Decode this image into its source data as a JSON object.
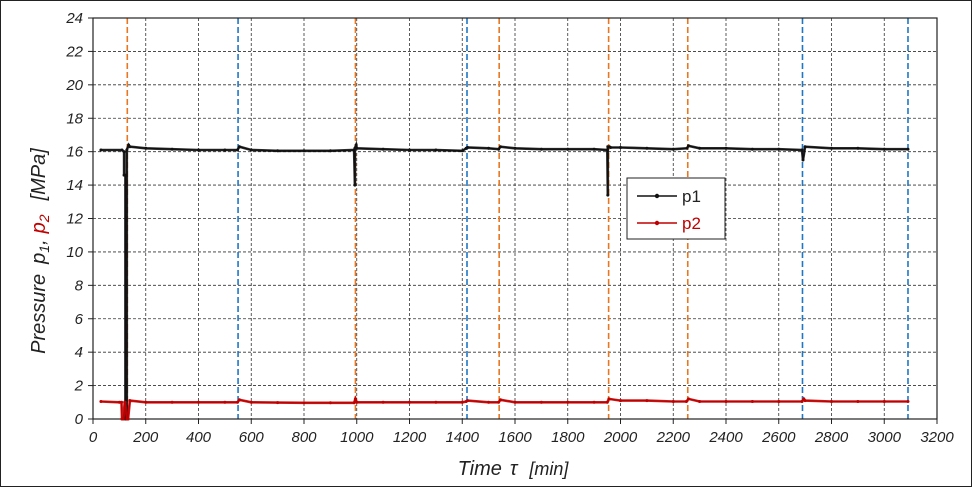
{
  "chart_data": {
    "type": "line",
    "ylabel_parts": {
      "pressure": "Pressure",
      "p1_base": "p",
      "p1_sub": "1",
      "comma": ",",
      "p2_base": "p",
      "p2_sub": "2",
      "unit": "[MPa]"
    },
    "xlabel_parts": {
      "time": "Time",
      "tau": "τ",
      "unit": "[min]"
    },
    "xlim": [
      0,
      3200
    ],
    "ylim": [
      0,
      24
    ],
    "x_ticks": [
      "0",
      "200",
      "400",
      "600",
      "800",
      "1000",
      "1200",
      "1400",
      "1600",
      "1800",
      "2000",
      "2200",
      "2400",
      "2600",
      "2800",
      "3000",
      "3200"
    ],
    "y_ticks": [
      "0",
      "2",
      "4",
      "6",
      "8",
      "10",
      "12",
      "14",
      "16",
      "18",
      "20",
      "22",
      "24"
    ],
    "grid": true,
    "legend_position": "center-right",
    "colors": {
      "p1": "#111111",
      "p2": "#c00000",
      "orange_marker": "#e87722",
      "blue_marker": "#1f77c4",
      "grid": "#333333"
    },
    "vertical_markers": [
      {
        "x": 130,
        "color": "orange"
      },
      {
        "x": 550,
        "color": "blue"
      },
      {
        "x": 995,
        "color": "orange"
      },
      {
        "x": 1418,
        "color": "blue"
      },
      {
        "x": 1540,
        "color": "orange"
      },
      {
        "x": 1955,
        "color": "orange"
      },
      {
        "x": 2255,
        "color": "orange"
      },
      {
        "x": 2690,
        "color": "blue"
      },
      {
        "x": 3090,
        "color": "blue"
      }
    ],
    "series": [
      {
        "name": "p1",
        "x": [
          30,
          110,
          118,
          118,
          123,
          123,
          128,
          128,
          135,
          140,
          200,
          300,
          400,
          500,
          548,
          555,
          600,
          700,
          800,
          900,
          990,
          993,
          993,
          998,
          1000,
          1100,
          1200,
          1300,
          1400,
          1415,
          1420,
          1500,
          1538,
          1545,
          1600,
          1700,
          1800,
          1900,
          1950,
          1952,
          1952,
          1958,
          1962,
          2000,
          2100,
          2200,
          2252,
          2258,
          2300,
          2400,
          2500,
          2600,
          2688,
          2692,
          2700,
          2800,
          2900,
          3000,
          3090
        ],
        "values": [
          16.1,
          16.1,
          16.0,
          14.6,
          14.6,
          0.0,
          0.0,
          16.1,
          16.4,
          16.3,
          16.2,
          16.15,
          16.1,
          16.1,
          16.1,
          16.3,
          16.1,
          16.05,
          16.05,
          16.05,
          16.1,
          14.0,
          16.2,
          16.4,
          16.2,
          16.15,
          16.1,
          16.1,
          16.05,
          16.2,
          16.25,
          16.2,
          16.15,
          16.3,
          16.2,
          16.15,
          16.15,
          16.15,
          16.1,
          13.4,
          16.3,
          16.3,
          16.25,
          16.25,
          16.2,
          16.15,
          16.2,
          16.35,
          16.2,
          16.2,
          16.15,
          16.15,
          16.1,
          15.5,
          16.3,
          16.2,
          16.2,
          16.15,
          16.15
        ]
      },
      {
        "name": "p2",
        "x": [
          30,
          100,
          108,
          110,
          115,
          120,
          122,
          128,
          133,
          140,
          200,
          300,
          400,
          500,
          548,
          555,
          600,
          700,
          800,
          900,
          990,
          995,
          1000,
          1100,
          1200,
          1300,
          1400,
          1415,
          1420,
          1500,
          1538,
          1545,
          1600,
          1700,
          1800,
          1900,
          1950,
          1956,
          2000,
          2100,
          2200,
          2250,
          2258,
          2300,
          2400,
          2500,
          2600,
          2688,
          2695,
          2700,
          2800,
          2900,
          3000,
          3090
        ],
        "values": [
          1.05,
          1.0,
          1.0,
          0.0,
          0.0,
          1.0,
          1.0,
          0.0,
          0.0,
          1.1,
          1.0,
          1.0,
          1.0,
          1.0,
          1.0,
          1.15,
          1.0,
          0.98,
          0.97,
          0.97,
          0.97,
          1.2,
          1.0,
          1.0,
          1.0,
          1.0,
          1.0,
          1.05,
          1.1,
          1.0,
          1.0,
          1.15,
          1.0,
          1.0,
          1.0,
          1.0,
          1.0,
          1.2,
          1.1,
          1.1,
          1.05,
          1.05,
          1.2,
          1.05,
          1.05,
          1.05,
          1.05,
          1.05,
          1.2,
          1.1,
          1.05,
          1.05,
          1.05,
          1.05
        ]
      }
    ]
  }
}
